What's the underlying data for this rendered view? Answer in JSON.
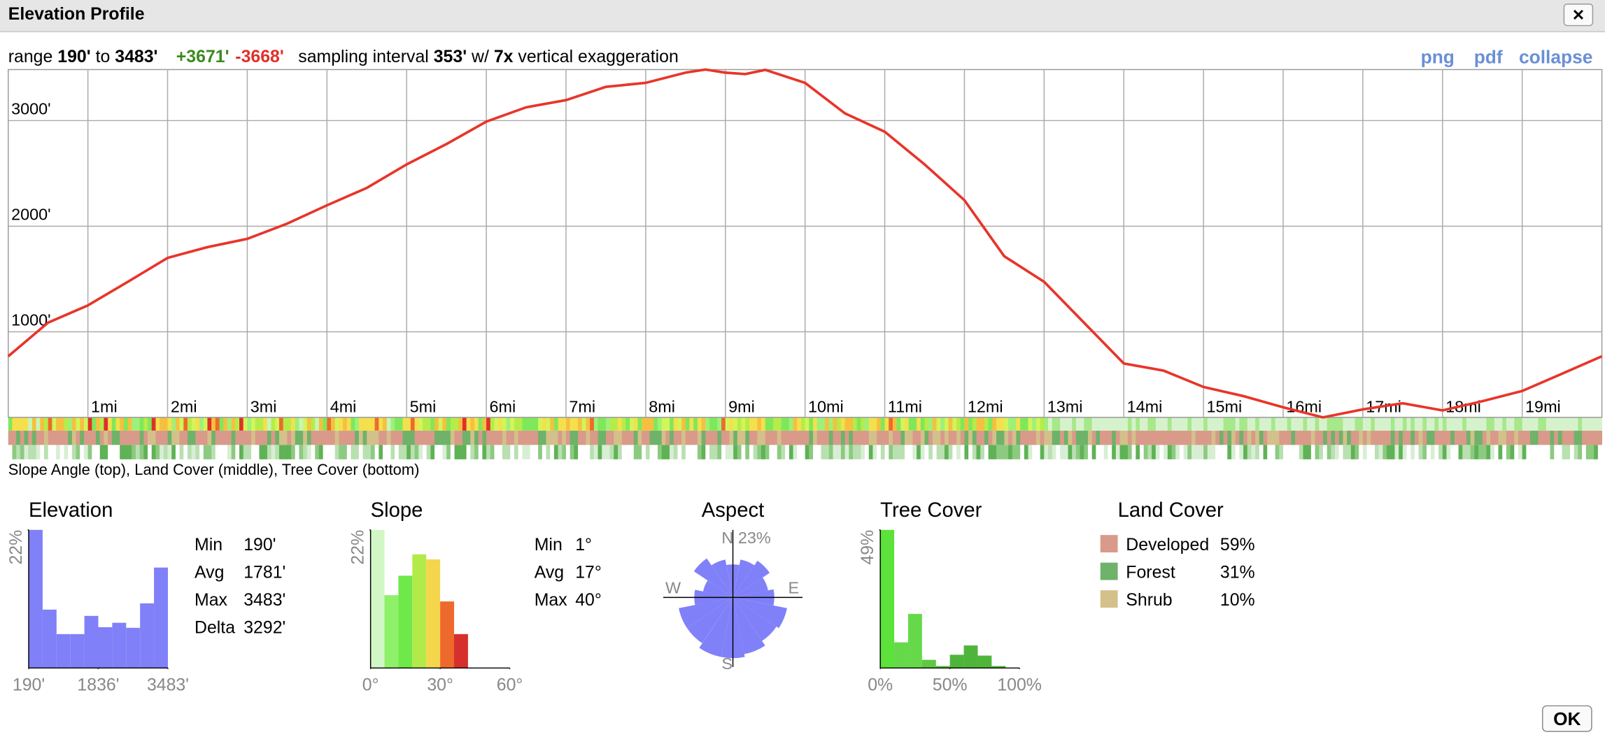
{
  "window": {
    "title": "Elevation Profile",
    "close": "✕",
    "ok": "OK"
  },
  "summary": {
    "range_label": "range",
    "min": "190'",
    "to": "to",
    "max": "3483'",
    "gain": "+3671'",
    "loss": "-3668'",
    "interval_label": "sampling interval",
    "interval": "353'",
    "with": "w/",
    "exaggeration": "7x",
    "exaggeration_label": "vertical exaggeration"
  },
  "links": [
    "png",
    "pdf",
    "collapse"
  ],
  "strip_caption": "Slope Angle (top), Land Cover (middle), Tree Cover (bottom)",
  "chart_data": [
    {
      "type": "line",
      "color": "#e8352a",
      "x": [
        0,
        0.5,
        1,
        1.5,
        2,
        2.5,
        3,
        3.5,
        4,
        4.5,
        5,
        5.5,
        6,
        6.5,
        7,
        7.5,
        8,
        8.5,
        8.75,
        9,
        9.25,
        9.5,
        10,
        10.5,
        11,
        11.5,
        12,
        12.5,
        13,
        13.5,
        14,
        14.5,
        15,
        15.5,
        16,
        16.5,
        17,
        17.5,
        18,
        18.5,
        19,
        19.5,
        20
      ],
      "values": [
        768,
        1087,
        1251,
        1473,
        1700,
        1802,
        1880,
        2024,
        2198,
        2362,
        2585,
        2778,
        2990,
        3126,
        3193,
        3319,
        3357,
        3454,
        3483,
        3454,
        3440,
        3480,
        3357,
        3068,
        2894,
        2585,
        2246,
        1715,
        1473,
        1087,
        700,
        633,
        478,
        391,
        285,
        190,
        266,
        324,
        256,
        343,
        440,
        604,
        768
      ],
      "xlim": [
        0,
        20
      ],
      "ylim": [
        190,
        3483
      ],
      "grid": true,
      "xticks": [
        {
          "value": 1,
          "label": "1mi"
        },
        {
          "value": 2,
          "label": "2mi"
        },
        {
          "value": 3,
          "label": "3mi"
        },
        {
          "value": 4,
          "label": "4mi"
        },
        {
          "value": 5,
          "label": "5mi"
        },
        {
          "value": 6,
          "label": "6mi"
        },
        {
          "value": 7,
          "label": "7mi"
        },
        {
          "value": 8,
          "label": "8mi"
        },
        {
          "value": 9,
          "label": "9mi"
        },
        {
          "value": 10,
          "label": "10mi"
        },
        {
          "value": 11,
          "label": "11mi"
        },
        {
          "value": 12,
          "label": "12mi"
        },
        {
          "value": 13,
          "label": "13mi"
        },
        {
          "value": 14,
          "label": "14mi"
        },
        {
          "value": 15,
          "label": "15mi"
        },
        {
          "value": 16,
          "label": "16mi"
        },
        {
          "value": 17,
          "label": "17mi"
        },
        {
          "value": 18,
          "label": "18mi"
        },
        {
          "value": 19,
          "label": "19mi"
        }
      ],
      "yticks": [
        {
          "value": 1000,
          "label": "1000'"
        },
        {
          "value": 2000,
          "label": "2000'"
        },
        {
          "value": 3000,
          "label": "3000'"
        }
      ]
    },
    {
      "type": "histogram",
      "title": "Elevation",
      "color": "#8080f8",
      "bins": [
        190,
        519.3,
        848.6,
        1177.9,
        1507.2,
        1836.5,
        2165.8,
        2495.1,
        2824.4,
        3153.7,
        3483
      ],
      "values": [
        22,
        9.3,
        5.4,
        5.4,
        8.3,
        6.5,
        7.2,
        6.4,
        10.3,
        16
      ],
      "xlim": [
        190,
        3483
      ],
      "ylim": [
        0,
        22
      ],
      "xticks": [
        {
          "value": 190,
          "label": "190'"
        },
        {
          "value": 1836,
          "label": "1836'"
        },
        {
          "value": 3483,
          "label": "3483'"
        }
      ],
      "yticks": [
        {
          "value": 22,
          "label": "22%"
        }
      ]
    },
    {
      "type": "histogram",
      "title": "Slope",
      "colors": [
        "#d2f7c6",
        "#8ff06a",
        "#6fe84a",
        "#b2ea4a",
        "#f4d64c",
        "#ee6a2c",
        "#d6302c"
      ],
      "bins": [
        0,
        6,
        12,
        18,
        24,
        30,
        36,
        42
      ],
      "values": [
        22,
        11.6,
        14.7,
        18.1,
        17.3,
        10.6,
        5.4
      ],
      "xlim": [
        0,
        60
      ],
      "ylim": [
        0,
        22
      ],
      "xticks": [
        {
          "value": 0,
          "label": "0°"
        },
        {
          "value": 30,
          "label": "30°"
        },
        {
          "value": 60,
          "label": "60°"
        }
      ],
      "yticks": [
        {
          "value": 22,
          "label": "22%"
        }
      ]
    },
    {
      "type": "rose",
      "title": "Aspect",
      "color": "#8080f8",
      "categories": [
        "N",
        null,
        null,
        null,
        "E",
        null,
        null,
        null,
        "S",
        null,
        null,
        null,
        "W",
        null,
        null,
        null
      ],
      "values": [
        12,
        14,
        16,
        13,
        15,
        20,
        19,
        21,
        22,
        22,
        20,
        20,
        14,
        11,
        17,
        14
      ],
      "rlim": [
        0,
        23
      ],
      "rticks": [
        {
          "value": 23,
          "label": "23%"
        }
      ]
    },
    {
      "type": "histogram",
      "title": "Tree Cover",
      "colors": [
        "#5ce23a",
        "#66d94a",
        "#66d94a",
        "#5fc844",
        "#58be40",
        "#4fb53a",
        "#4fb53a",
        "#4fb53a",
        "#4fb53a",
        "#4fb53a"
      ],
      "bins": [
        0,
        10,
        20,
        30,
        40,
        50,
        60,
        70,
        80,
        90,
        100
      ],
      "values": [
        49,
        9.1,
        19.2,
        2.9,
        0.7,
        4.7,
        8,
        4.4,
        0.7,
        0
      ],
      "xlim": [
        0,
        100
      ],
      "ylim": [
        0,
        49
      ],
      "xticks": [
        {
          "value": 0,
          "label": "0%"
        },
        {
          "value": 50,
          "label": "50%"
        },
        {
          "value": 100,
          "label": "100%"
        }
      ],
      "yticks": [
        {
          "value": 49,
          "label": "49%"
        }
      ]
    }
  ],
  "elevation_stats": [
    [
      "Min",
      "190'"
    ],
    [
      "Avg",
      "1781'"
    ],
    [
      "Max",
      "3483'"
    ],
    [
      "Delta",
      "3292'"
    ]
  ],
  "slope_stats": [
    [
      "Min",
      "1°"
    ],
    [
      "Avg",
      "17°"
    ],
    [
      "Max",
      "40°"
    ]
  ],
  "land_cover": {
    "title": "Land Cover",
    "rows": [
      [
        "Developed",
        "59%"
      ],
      [
        "Forest",
        "31%"
      ],
      [
        "Shrub",
        "10%"
      ]
    ],
    "colors": [
      "#d99a8a",
      "#6fb26a",
      "#d4c08a"
    ]
  }
}
